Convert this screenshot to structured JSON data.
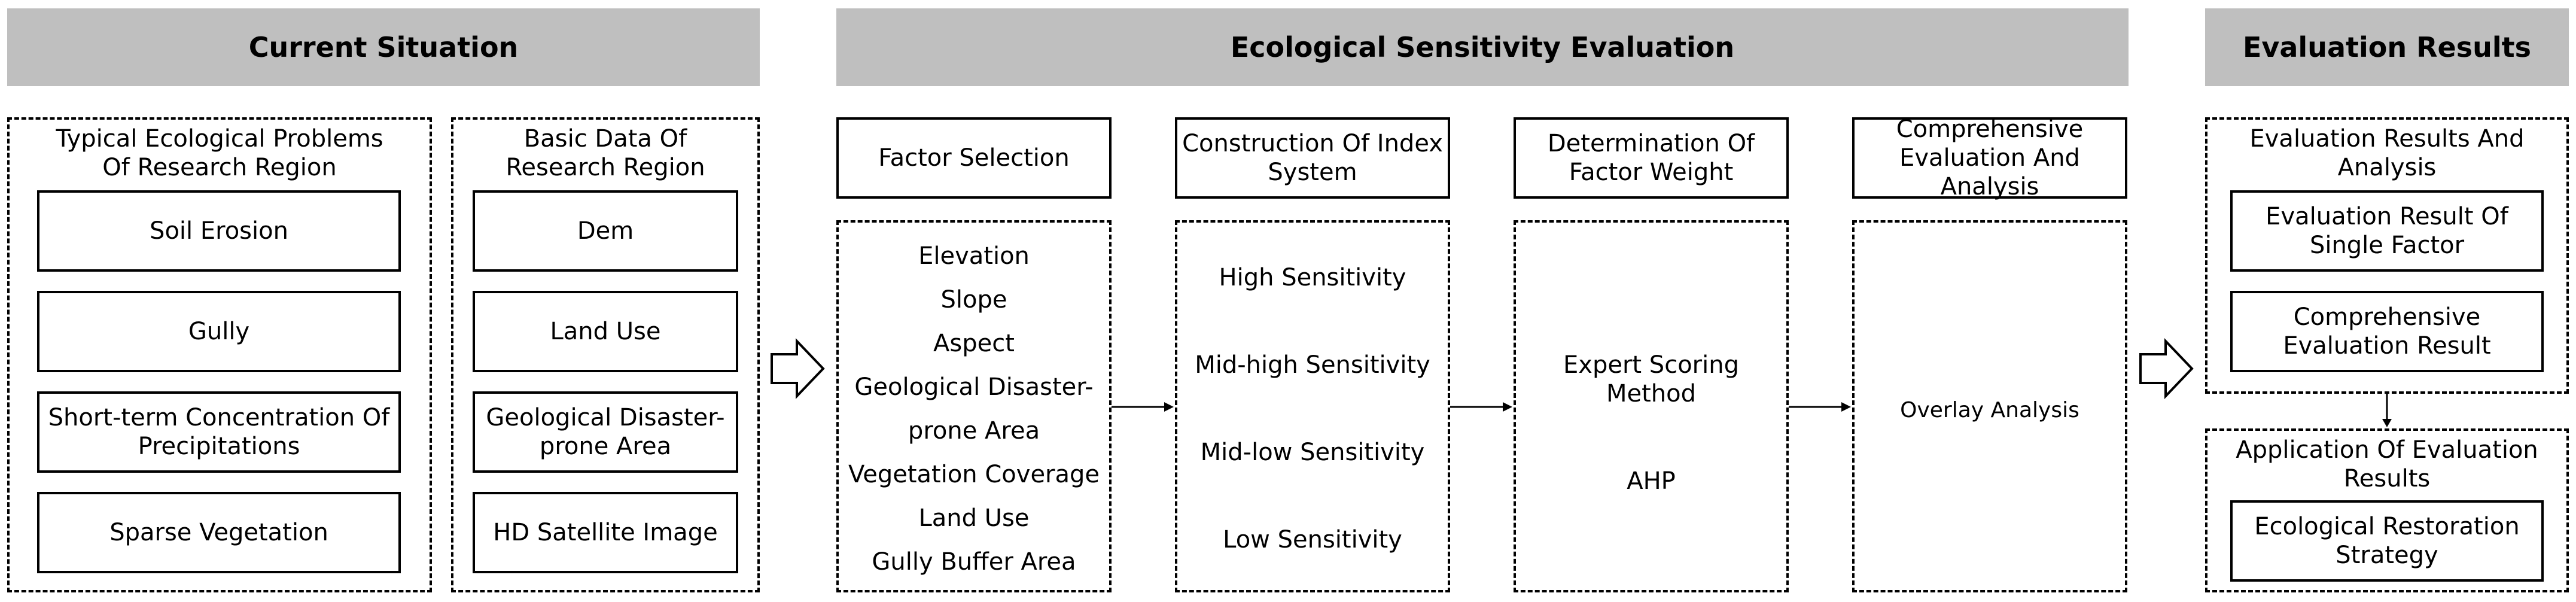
{
  "headers": {
    "current": "Current Situation",
    "eval": "Ecological Sensitivity Evaluation",
    "results": "Evaluation Results"
  },
  "problems": {
    "title": "Typical Ecological Problems Of Research Region",
    "items": [
      "Soil Erosion",
      "Gully",
      "Short-term Concentration Of Precipitations",
      "Sparse Vegetation"
    ]
  },
  "basic_data": {
    "title": "Basic Data Of Research Region",
    "items": [
      "Dem",
      "Land Use",
      "Geological Disaster-prone Area",
      "HD Satellite Image"
    ]
  },
  "steps": {
    "factor_selection": "Factor Selection",
    "construction": "Construction Of Index System",
    "determination": "Determination Of Factor Weight",
    "comprehensive": "Comprehensive Evaluation And Analysis"
  },
  "factors": [
    "Elevation",
    "Slope",
    "Aspect",
    "Geological Disaster-",
    "prone Area",
    "Vegetation Coverage",
    "Land Use",
    "Gully Buffer Area"
  ],
  "sensitivity": [
    "High Sensitivity",
    "Mid-high Sensitivity",
    "Mid-low Sensitivity",
    "Low Sensitivity"
  ],
  "weights": [
    "Expert Scoring Method",
    "AHP"
  ],
  "overlay": "Overlay Analysis",
  "results": {
    "title": "Evaluation Results And Analysis",
    "items": [
      "Evaluation Result Of Single Factor",
      "Comprehensive Evaluation Result"
    ]
  },
  "application": {
    "title": "Application Of Evaluation Results",
    "item": "Ecological Restoration Strategy"
  }
}
